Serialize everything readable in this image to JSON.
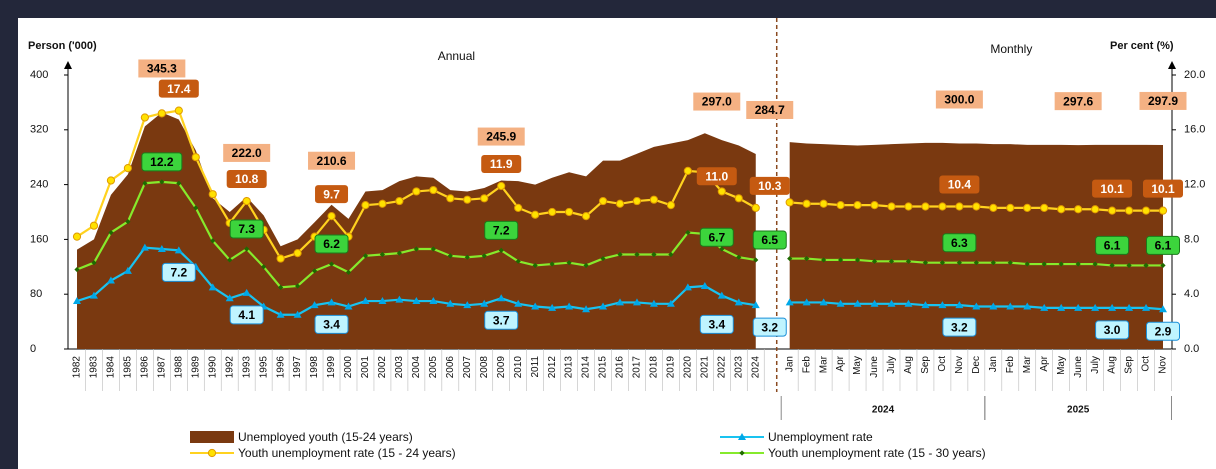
{
  "chart_data": {
    "type": "combo",
    "ylabel": "Person ('000)",
    "y2label": "Per cent (%)",
    "section_labels": [
      "Annual",
      "Monthly"
    ],
    "month_years": [
      "2024",
      "2025"
    ],
    "categories": [
      "1982",
      "1983",
      "1984",
      "1985",
      "1986",
      "1987",
      "1988",
      "1989",
      "1990",
      "1992",
      "1993",
      "1995",
      "1996",
      "1997",
      "1998",
      "1999",
      "2000",
      "2001",
      "2002",
      "2003",
      "2004",
      "2005",
      "2006",
      "2007",
      "2008",
      "2009",
      "2010",
      "2011",
      "2012",
      "2013",
      "2014",
      "2015",
      "2016",
      "2017",
      "2018",
      "2019",
      "2020",
      "2021",
      "2022",
      "2023",
      "2024",
      null,
      "Jan",
      "Feb",
      "Mar",
      "Apr",
      "May",
      "June",
      "July",
      "Aug",
      "Sep",
      "Oct",
      "Nov",
      "Dec",
      "Jan",
      "Feb",
      "Mar",
      "Apr",
      "May",
      "June",
      "July",
      "Aug",
      "Sep",
      "Oct",
      "Nov"
    ],
    "ylim": [
      0,
      400
    ],
    "yticks": [
      0,
      80,
      160,
      240,
      320,
      400
    ],
    "y2lim": [
      0,
      20
    ],
    "y2ticks": [
      {
        "value": 0,
        "label": "0.0"
      },
      {
        "value": 4,
        "label": "4.0"
      },
      {
        "value": 8,
        "label": "8.0"
      },
      {
        "value": 12,
        "label": "12.0"
      },
      {
        "value": 16,
        "label": "16.0"
      },
      {
        "value": 20,
        "label": "20.0"
      }
    ],
    "grid": false,
    "legend": "bottom",
    "series": [
      {
        "name": "Unemployed youth (15-24 years)",
        "type": "area",
        "color": "#7a3910",
        "axis": "y",
        "values": [
          145,
          160,
          225,
          255,
          325,
          345.3,
          335,
          290,
          220,
          200,
          222.0,
          195,
          150,
          160,
          185,
          210.6,
          190,
          230,
          232,
          245,
          252,
          250,
          232,
          230,
          235,
          245.9,
          245,
          240,
          250,
          258,
          252,
          275,
          275,
          285,
          295,
          300,
          305,
          315,
          305,
          297.0,
          284.7,
          null,
          302,
          300,
          299,
          298,
          297,
          298,
          299,
          300,
          301,
          301,
          300.0,
          300,
          299,
          299,
          298,
          298,
          298,
          297.6,
          298,
          298,
          298,
          298,
          297.9
        ],
        "value_labels": [
          null,
          null,
          null,
          null,
          null,
          "345.3",
          null,
          null,
          null,
          null,
          "222.0",
          null,
          null,
          null,
          null,
          "210.6",
          null,
          null,
          null,
          null,
          null,
          null,
          null,
          null,
          null,
          "245.9",
          null,
          null,
          null,
          null,
          null,
          null,
          null,
          null,
          null,
          null,
          null,
          null,
          null,
          "297.0",
          "284.7",
          null,
          null,
          null,
          null,
          null,
          null,
          null,
          null,
          null,
          null,
          null,
          "300.0",
          null,
          null,
          null,
          null,
          null,
          null,
          "297.6",
          null,
          null,
          null,
          null,
          "297.9"
        ]
      },
      {
        "name": "Youth unemployment rate (15 - 24 years)",
        "type": "line",
        "color": "#ffd21f",
        "marker": "circle",
        "marker_color": "#ffe100",
        "axis": "y2",
        "values": [
          8.2,
          9.0,
          12.3,
          13.2,
          16.9,
          17.2,
          17.4,
          14.0,
          11.3,
          9.2,
          10.8,
          8.7,
          6.6,
          7.0,
          8.2,
          9.7,
          8.2,
          10.5,
          10.6,
          10.8,
          11.5,
          11.6,
          11.0,
          10.9,
          11.0,
          11.9,
          10.3,
          9.8,
          10.0,
          10.0,
          9.7,
          10.8,
          10.6,
          10.8,
          10.9,
          10.5,
          13.0,
          12.9,
          11.5,
          11.0,
          10.3,
          null,
          10.7,
          10.6,
          10.6,
          10.5,
          10.5,
          10.5,
          10.4,
          10.4,
          10.4,
          10.4,
          10.4,
          10.4,
          10.3,
          10.3,
          10.3,
          10.3,
          10.2,
          10.2,
          10.2,
          10.1,
          10.1,
          10.1,
          10.1
        ],
        "value_labels": [
          null,
          null,
          null,
          null,
          null,
          null,
          "17.4",
          null,
          null,
          null,
          "10.8",
          null,
          null,
          null,
          null,
          "9.7",
          null,
          null,
          null,
          null,
          null,
          null,
          null,
          null,
          null,
          "11.9",
          null,
          null,
          null,
          null,
          null,
          null,
          null,
          null,
          null,
          null,
          null,
          null,
          null,
          "11.0",
          "10.3",
          null,
          null,
          null,
          null,
          null,
          null,
          null,
          null,
          null,
          null,
          null,
          "10.4",
          null,
          null,
          null,
          null,
          null,
          null,
          null,
          null,
          "10.1",
          null,
          null,
          "10.1"
        ]
      },
      {
        "name": "Unemployment rate",
        "type": "line",
        "color": "#19c3f0",
        "marker": "triangle",
        "marker_color": "#00a8e8",
        "axis": "y2",
        "values": [
          3.5,
          3.9,
          5.0,
          5.7,
          7.4,
          7.3,
          7.2,
          6.0,
          4.5,
          3.7,
          4.1,
          3.1,
          2.5,
          2.5,
          3.2,
          3.4,
          3.1,
          3.5,
          3.5,
          3.6,
          3.5,
          3.5,
          3.3,
          3.2,
          3.3,
          3.7,
          3.3,
          3.1,
          3.0,
          3.1,
          2.9,
          3.1,
          3.4,
          3.4,
          3.3,
          3.3,
          4.5,
          4.6,
          3.9,
          3.4,
          3.2,
          null,
          3.4,
          3.4,
          3.4,
          3.3,
          3.3,
          3.3,
          3.3,
          3.3,
          3.2,
          3.2,
          3.2,
          3.1,
          3.1,
          3.1,
          3.1,
          3.0,
          3.0,
          3.0,
          3.0,
          3.0,
          3.0,
          3.0,
          2.9
        ],
        "value_labels": [
          null,
          null,
          null,
          null,
          null,
          null,
          "7.2",
          null,
          null,
          null,
          "4.1",
          null,
          null,
          null,
          null,
          "3.4",
          null,
          null,
          null,
          null,
          null,
          null,
          null,
          null,
          null,
          "3.7",
          null,
          null,
          null,
          null,
          null,
          null,
          null,
          null,
          null,
          null,
          null,
          null,
          null,
          "3.4",
          "3.2",
          null,
          null,
          null,
          null,
          null,
          null,
          null,
          null,
          null,
          null,
          null,
          "3.2",
          null,
          null,
          null,
          null,
          null,
          null,
          null,
          null,
          "3.0",
          null,
          null,
          "2.9"
        ]
      },
      {
        "name": "Youth unemployment rate (15 - 30 years)",
        "type": "line",
        "color": "#86ea2c",
        "marker": "diamond",
        "marker_color": "#1f6a00",
        "axis": "y2",
        "values": [
          5.8,
          6.3,
          8.5,
          9.3,
          12.1,
          12.2,
          12.1,
          10.3,
          7.9,
          6.5,
          7.3,
          6.0,
          4.5,
          4.6,
          5.7,
          6.2,
          5.6,
          6.8,
          6.9,
          7.0,
          7.3,
          7.3,
          6.8,
          6.7,
          6.8,
          7.2,
          6.4,
          6.1,
          6.2,
          6.3,
          6.1,
          6.6,
          6.9,
          6.9,
          6.9,
          6.9,
          8.5,
          8.4,
          7.3,
          6.7,
          6.5,
          null,
          6.6,
          6.6,
          6.5,
          6.5,
          6.5,
          6.4,
          6.4,
          6.4,
          6.3,
          6.3,
          6.3,
          6.3,
          6.3,
          6.3,
          6.2,
          6.2,
          6.2,
          6.2,
          6.2,
          6.1,
          6.1,
          6.1,
          6.1
        ],
        "value_labels": [
          null,
          null,
          null,
          null,
          null,
          "12.2",
          null,
          null,
          null,
          null,
          "7.3",
          null,
          null,
          null,
          null,
          "6.2",
          null,
          null,
          null,
          null,
          null,
          null,
          null,
          null,
          null,
          "7.2",
          null,
          null,
          null,
          null,
          null,
          null,
          null,
          null,
          null,
          null,
          null,
          null,
          null,
          "6.7",
          "6.5",
          null,
          null,
          null,
          null,
          null,
          null,
          null,
          null,
          null,
          null,
          null,
          "6.3",
          null,
          null,
          null,
          null,
          null,
          null,
          null,
          null,
          "6.1",
          null,
          null,
          "6.1"
        ]
      }
    ]
  }
}
